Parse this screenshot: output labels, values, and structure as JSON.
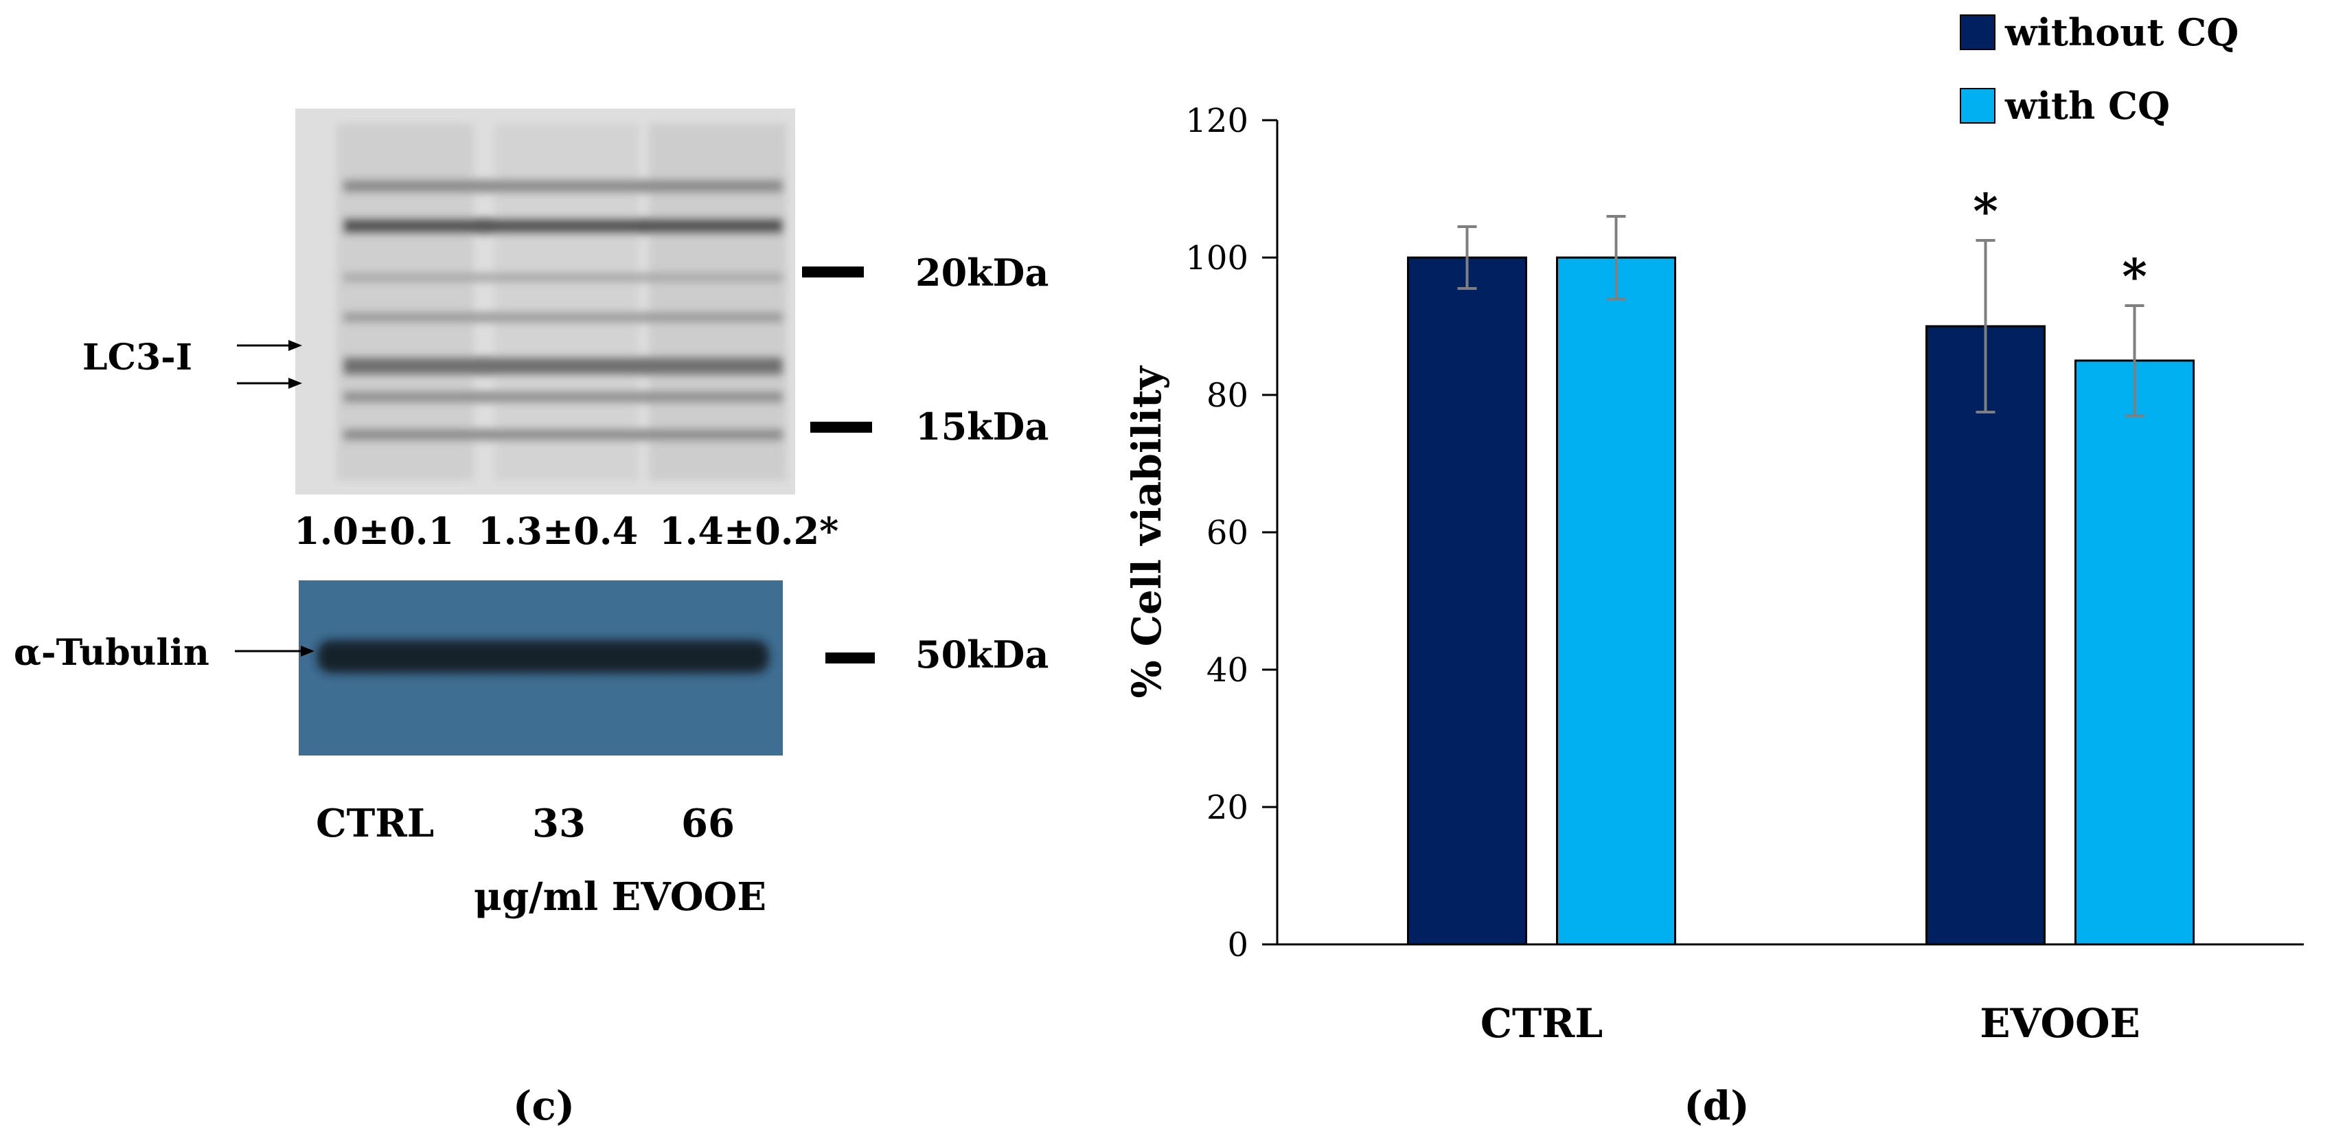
{
  "panel_c": {
    "panel_label": "(c)",
    "lc3_label": "LC3-I",
    "tubulin_label": "α-Tubulin",
    "markers": [
      "20kDa",
      "15kDa",
      "50kDa"
    ],
    "quantifications": [
      "1.0±0.1",
      "1.3±0.4",
      "1.4±0.2*"
    ],
    "lanes": [
      "CTRL",
      "33",
      "66"
    ],
    "treatment_label": "μg/ml EVOOE",
    "colors": {
      "blot_bg": "#dedede",
      "band": "#5a5a5a",
      "tubulin_bg": "#3f6e93",
      "tubulin_band": "#16212c"
    }
  },
  "panel_d": {
    "panel_label": "(d)",
    "significance_marker": "*"
  },
  "chart_data": {
    "type": "bar",
    "categories": [
      "CTRL",
      "EVOOE"
    ],
    "series": [
      {
        "name": "without CQ",
        "color": "#002060",
        "values": [
          100,
          90
        ],
        "errors": [
          4.5,
          12.5
        ],
        "significance": [
          "",
          "*"
        ]
      },
      {
        "name": "with CQ",
        "color": "#00b0f0",
        "values": [
          100,
          85
        ],
        "errors": [
          6,
          8
        ],
        "significance": [
          "",
          "*"
        ]
      }
    ],
    "title": "",
    "xlabel": "",
    "ylabel": "% Cell viability",
    "ylim": [
      0,
      120
    ],
    "yticks": [
      0,
      20,
      40,
      60,
      80,
      100,
      120
    ],
    "grid": false,
    "legend": "top-right"
  }
}
